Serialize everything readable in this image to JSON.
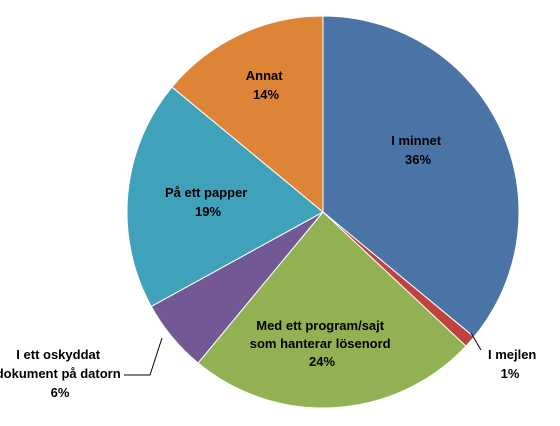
{
  "chart_data": {
    "type": "pie",
    "title": "",
    "start_angle_deg": 0,
    "direction": "clockwise",
    "slices": [
      {
        "name": "I minnet",
        "value": 36,
        "label": "36%",
        "color": "#4A73A6"
      },
      {
        "name": "I mejlen",
        "value": 1,
        "label": "1%",
        "color": "#BD4240"
      },
      {
        "name": "Med ett program/sajt som hanterar lösenord",
        "value": 24,
        "label": "24%",
        "color": "#92B153"
      },
      {
        "name": "I ett oskyddat dokument på datorn",
        "value": 6,
        "label": "6%",
        "color": "#725895"
      },
      {
        "name": "På ett papper",
        "value": 19,
        "label": "19%",
        "color": "#40A1BA"
      },
      {
        "name": "Annat",
        "value": 14,
        "label": "14%",
        "color": "#DE8437"
      }
    ],
    "labels": {
      "i_minnet": [
        "I minnet",
        "36%"
      ],
      "i_mejlen": [
        "I mejlen",
        "1%"
      ],
      "program": [
        "Med ett program/sajt",
        "som hanterar lösenord",
        "24%"
      ],
      "dokument": [
        "I ett oskyddat",
        "dokument på datorn",
        "6%"
      ],
      "papper": [
        "På ett papper",
        "19%"
      ],
      "annat": [
        "Annat",
        "14%"
      ]
    }
  }
}
